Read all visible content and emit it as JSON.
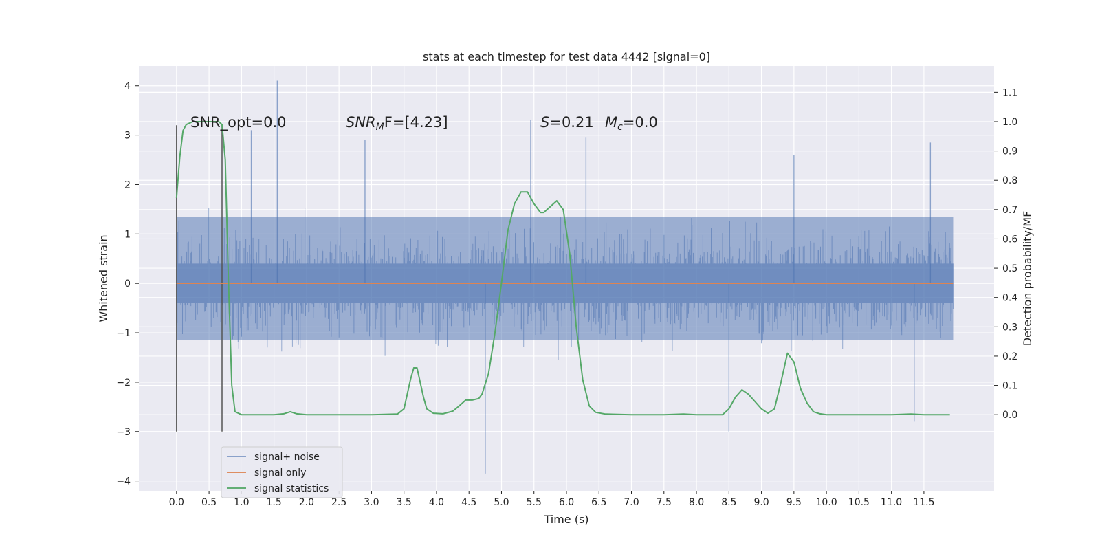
{
  "chart_data": {
    "type": "line",
    "title": "stats at each timestep for test data 4442 [signal=0]",
    "xlabel": "Time (s)",
    "ylabel": "Whitened strain",
    "y2label": "Detection probability/MF",
    "xlim": [
      -0.58,
      12.58
    ],
    "ylim": [
      -4.2,
      4.4
    ],
    "y2lim": [
      -0.26,
      1.19
    ],
    "x_ticks": [
      "0.0",
      "0.5",
      "1.0",
      "1.5",
      "2.0",
      "2.5",
      "3.0",
      "3.5",
      "4.0",
      "4.5",
      "5.0",
      "5.5",
      "6.0",
      "6.5",
      "7.0",
      "7.5",
      "8.0",
      "8.5",
      "9.0",
      "9.5",
      "10.0",
      "10.5",
      "11.0",
      "11.5"
    ],
    "y_ticks": [
      "4",
      "3",
      "2",
      "1",
      "0",
      "−1",
      "−2",
      "−3",
      "−4"
    ],
    "y2_ticks": [
      "1.1",
      "1.0",
      "0.9",
      "0.8",
      "0.7",
      "0.6",
      "0.5",
      "0.4",
      "0.3",
      "0.2",
      "0.1",
      "0.0"
    ],
    "grid": true,
    "legend_position": "lower-left",
    "annotations": {
      "snr_opt": "SNR_opt=0.0",
      "snr_mf": "SNR",
      "snr_mf_sub": "M",
      "snr_mf_rest": "F=[4.23]",
      "s_label": "S",
      "s_value": "=0.21",
      "mc_label": "M",
      "mc_sub": "c",
      "mc_value": "=0.0"
    },
    "markers": [
      {
        "x": 0.0,
        "y_from": -3.0,
        "y_to": 3.2
      },
      {
        "x": 0.7,
        "y_from": -3.0,
        "y_to": 3.2
      }
    ],
    "series": [
      {
        "name": "signal+ noise",
        "color": "#4c72b0",
        "kind": "noise",
        "x_range": [
          0.0,
          11.95
        ],
        "band": [
          -1.15,
          1.35
        ],
        "extremes": [
          {
            "x": 1.55,
            "y": 4.1
          },
          {
            "x": 4.75,
            "y": -3.85
          },
          {
            "x": 5.45,
            "y": 3.3
          },
          {
            "x": 1.15,
            "y": 3.1
          },
          {
            "x": 2.9,
            "y": 2.9
          },
          {
            "x": 6.3,
            "y": 2.95
          },
          {
            "x": 9.5,
            "y": 2.6
          },
          {
            "x": 8.5,
            "y": -3.0
          },
          {
            "x": 11.6,
            "y": 2.85
          },
          {
            "x": 11.35,
            "y": -2.8
          }
        ]
      },
      {
        "name": "signal only",
        "color": "#dd8452",
        "kind": "line",
        "x": [
          0.0,
          11.95
        ],
        "y": [
          0.0,
          0.0
        ]
      },
      {
        "name": "signal statistics",
        "color": "#55a868",
        "kind": "line",
        "axis": "right",
        "x": [
          0.0,
          0.05,
          0.1,
          0.15,
          0.25,
          0.4,
          0.55,
          0.65,
          0.7,
          0.75,
          0.8,
          0.85,
          0.9,
          1.0,
          1.5,
          1.65,
          1.75,
          1.85,
          2.0,
          2.5,
          3.0,
          3.4,
          3.5,
          3.6,
          3.65,
          3.7,
          3.75,
          3.8,
          3.85,
          3.95,
          4.1,
          4.25,
          4.35,
          4.45,
          4.55,
          4.65,
          4.7,
          4.8,
          4.9,
          5.0,
          5.1,
          5.2,
          5.3,
          5.4,
          5.5,
          5.6,
          5.65,
          5.75,
          5.85,
          5.95,
          6.05,
          6.15,
          6.25,
          6.35,
          6.45,
          6.6,
          7.0,
          7.5,
          7.8,
          8.0,
          8.4,
          8.5,
          8.6,
          8.7,
          8.8,
          8.9,
          9.0,
          9.1,
          9.2,
          9.3,
          9.4,
          9.5,
          9.6,
          9.7,
          9.8,
          9.9,
          10.0,
          10.5,
          11.0,
          11.3,
          11.5,
          11.9
        ],
        "y": [
          0.74,
          0.88,
          0.97,
          0.99,
          1.0,
          1.0,
          1.0,
          1.0,
          0.99,
          0.87,
          0.45,
          0.1,
          0.01,
          0.0,
          0.0,
          0.003,
          0.01,
          0.003,
          0.0,
          0.0,
          0.0,
          0.002,
          0.02,
          0.12,
          0.16,
          0.16,
          0.11,
          0.06,
          0.02,
          0.005,
          0.003,
          0.012,
          0.03,
          0.05,
          0.05,
          0.055,
          0.07,
          0.14,
          0.28,
          0.45,
          0.63,
          0.72,
          0.76,
          0.76,
          0.72,
          0.69,
          0.69,
          0.71,
          0.73,
          0.7,
          0.55,
          0.3,
          0.12,
          0.03,
          0.008,
          0.002,
          0.0,
          0.0,
          0.002,
          0.0,
          0.0,
          0.02,
          0.06,
          0.085,
          0.07,
          0.045,
          0.02,
          0.005,
          0.02,
          0.11,
          0.21,
          0.18,
          0.09,
          0.04,
          0.01,
          0.003,
          0.0,
          0.0,
          0.0,
          0.002,
          0.0,
          0.0
        ]
      }
    ]
  }
}
